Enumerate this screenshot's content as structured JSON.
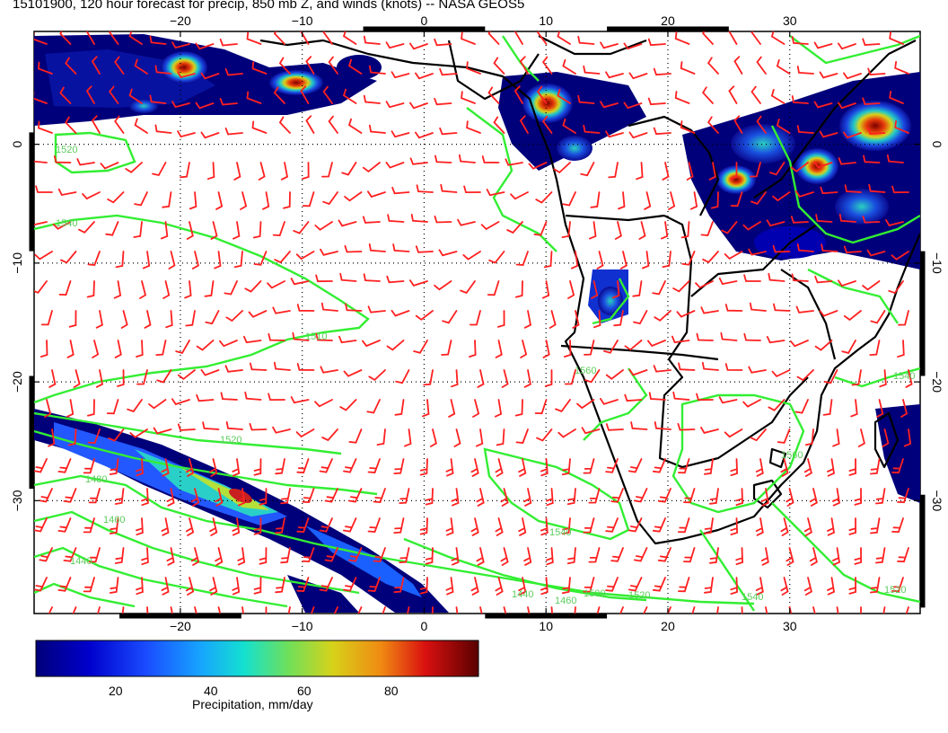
{
  "title": "15101900, 120 hour forecast for precip, 850 mb Z, and winds (knots) -- NASA GEOS5",
  "map": {
    "lon_ticks": [
      -20,
      -10,
      0,
      10,
      20,
      30
    ],
    "lat_ticks": [
      0,
      -10,
      -20,
      -30
    ],
    "lon_tick_labels": [
      "−20",
      "−10",
      "0",
      "10",
      "20",
      "30"
    ],
    "lat_tick_labels": [
      "0",
      "−10",
      "−20",
      "−30"
    ],
    "contour_labels": [
      "1520",
      "1540",
      "1560",
      "1510",
      "1520",
      "1480",
      "1460",
      "1440",
      "1540",
      "1440",
      "1460",
      "1500",
      "1520",
      "1540",
      "1560",
      "1520",
      "1540"
    ],
    "colors": {
      "contour": "#33ee33",
      "wind_barb": "#ff2020",
      "coastline": "#000000",
      "grid": "#000000"
    }
  },
  "colorbar": {
    "label": "Precipitation, mm/day",
    "ticks": [
      "20",
      "40",
      "60",
      "80"
    ]
  }
}
